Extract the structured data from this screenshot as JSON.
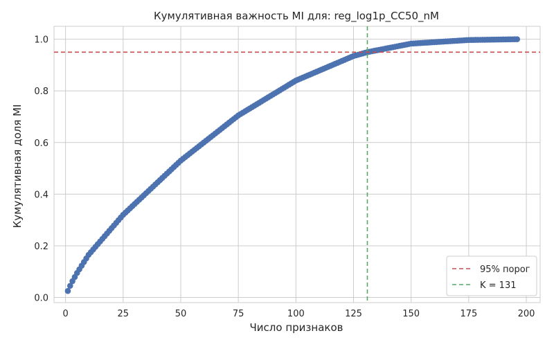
{
  "chart_data": {
    "type": "scatter",
    "title": "Кумулятивная важность MI для: reg_log1p_CC50_nM",
    "xlabel": "Число признаков",
    "ylabel": "Кумулятивная доля MI",
    "xlim": [
      -5,
      206
    ],
    "ylim": [
      -0.02,
      1.05
    ],
    "xticks": [
      0,
      25,
      50,
      75,
      100,
      125,
      150,
      175,
      200
    ],
    "xtick_labels": [
      "0",
      "25",
      "50",
      "75",
      "100",
      "125",
      "150",
      "175",
      "200"
    ],
    "yticks": [
      0.0,
      0.2,
      0.4,
      0.6,
      0.8,
      1.0
    ],
    "ytick_labels": [
      "0.0",
      "0.2",
      "0.4",
      "0.6",
      "0.8",
      "1.0"
    ],
    "grid": true,
    "n_points": 196,
    "curve_anchor_values": [
      {
        "x": 1,
        "y": 0.025
      },
      {
        "x": 2,
        "y": 0.045
      },
      {
        "x": 3,
        "y": 0.063
      },
      {
        "x": 5,
        "y": 0.095
      },
      {
        "x": 10,
        "y": 0.165
      },
      {
        "x": 25,
        "y": 0.32
      },
      {
        "x": 50,
        "y": 0.53
      },
      {
        "x": 75,
        "y": 0.705
      },
      {
        "x": 100,
        "y": 0.84
      },
      {
        "x": 125,
        "y": 0.935
      },
      {
        "x": 131,
        "y": 0.95
      },
      {
        "x": 150,
        "y": 0.983
      },
      {
        "x": 175,
        "y": 0.997
      },
      {
        "x": 196,
        "y": 1.0
      }
    ],
    "series_color": "#4c72b0",
    "threshold": {
      "y": 0.95,
      "color": "#c44e52",
      "label": "95% порог"
    },
    "k_line": {
      "x": 131,
      "color": "#55a868",
      "label": "K = 131"
    },
    "legend_position": "lower-right"
  }
}
